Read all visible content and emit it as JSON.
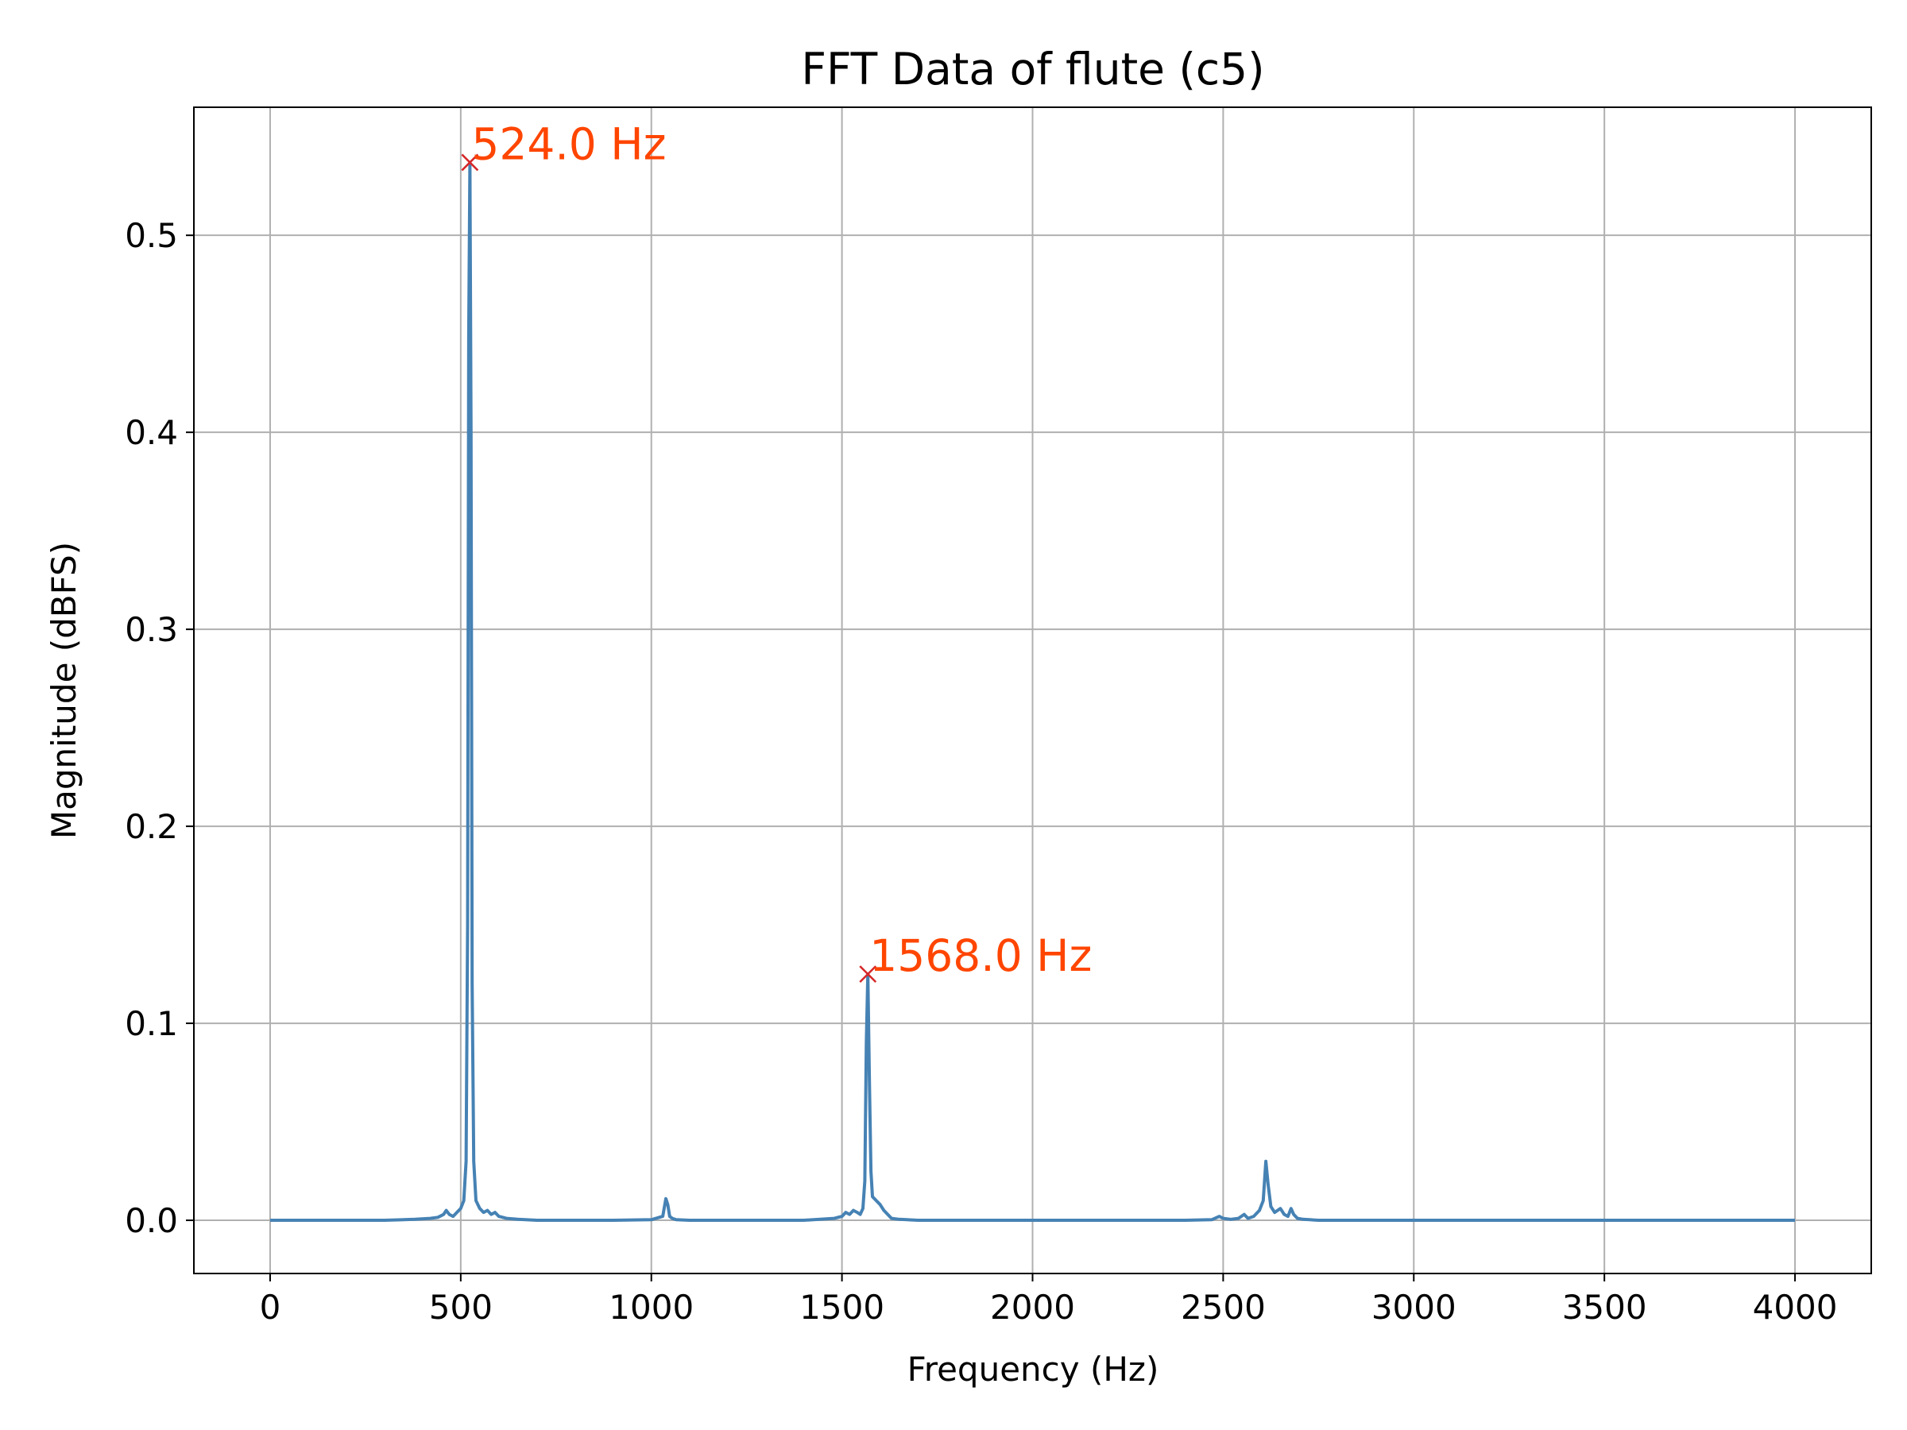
{
  "chart_data": {
    "type": "line",
    "title": "FFT Data of flute (c5)",
    "xlabel": "Frequency (Hz)",
    "ylabel": "Magnitude (dBFS)",
    "xlim": [
      -200,
      4200
    ],
    "ylim": [
      -0.027,
      0.565
    ],
    "xticks": [
      0,
      500,
      1000,
      1500,
      2000,
      2500,
      3000,
      3500,
      4000
    ],
    "yticks": [
      0.0,
      0.1,
      0.2,
      0.3,
      0.4,
      0.5
    ],
    "xtick_labels": [
      "0",
      "500",
      "1000",
      "1500",
      "2000",
      "2500",
      "3000",
      "3500",
      "4000"
    ],
    "ytick_labels": [
      "0.0",
      "0.1",
      "0.2",
      "0.3",
      "0.4",
      "0.5"
    ],
    "grid": true,
    "line_color": "#4682b4",
    "series": [
      {
        "x": [
          0,
          100,
          200,
          300,
          380,
          420,
          440,
          455,
          462,
          470,
          480,
          490,
          500,
          508,
          514,
          518,
          521,
          524,
          527,
          530,
          534,
          540,
          550,
          560,
          570,
          580,
          590,
          600,
          620,
          650,
          700,
          800,
          900,
          1000,
          1030,
          1038,
          1043,
          1048,
          1055,
          1065,
          1100,
          1200,
          1300,
          1400,
          1480,
          1500,
          1510,
          1520,
          1530,
          1540,
          1548,
          1555,
          1560,
          1564,
          1568,
          1572,
          1576,
          1580,
          1590,
          1600,
          1610,
          1620,
          1630,
          1650,
          1700,
          1800,
          2000,
          2200,
          2400,
          2470,
          2490,
          2500,
          2520,
          2540,
          2555,
          2565,
          2580,
          2595,
          2605,
          2612,
          2618,
          2625,
          2635,
          2650,
          2660,
          2670,
          2678,
          2685,
          2695,
          2710,
          2750,
          2800,
          3000,
          3200,
          3500,
          3800,
          4000
        ],
        "y": [
          0.0,
          0.0,
          0.0,
          0.0,
          0.0005,
          0.001,
          0.0015,
          0.003,
          0.005,
          0.003,
          0.002,
          0.004,
          0.006,
          0.01,
          0.03,
          0.15,
          0.45,
          0.537,
          0.4,
          0.12,
          0.03,
          0.01,
          0.006,
          0.004,
          0.005,
          0.003,
          0.004,
          0.002,
          0.001,
          0.0005,
          0.0,
          0.0,
          0.0,
          0.0003,
          0.002,
          0.011,
          0.008,
          0.002,
          0.001,
          0.0003,
          0.0,
          0.0,
          0.0,
          0.0,
          0.001,
          0.002,
          0.004,
          0.003,
          0.005,
          0.004,
          0.003,
          0.006,
          0.02,
          0.09,
          0.125,
          0.07,
          0.025,
          0.012,
          0.01,
          0.008,
          0.005,
          0.003,
          0.001,
          0.0005,
          0.0,
          0.0,
          0.0,
          0.0,
          0.0,
          0.0003,
          0.002,
          0.001,
          0.0005,
          0.001,
          0.003,
          0.001,
          0.002,
          0.005,
          0.01,
          0.03,
          0.018,
          0.007,
          0.004,
          0.006,
          0.003,
          0.002,
          0.006,
          0.003,
          0.001,
          0.0005,
          0.0,
          0.0,
          0.0,
          0.0,
          0.0,
          0.0,
          0.0
        ]
      }
    ],
    "peaks": [
      {
        "x": 524.0,
        "y": 0.537,
        "label": "524.0 Hz"
      },
      {
        "x": 1568.0,
        "y": 0.125,
        "label": "1568.0 Hz"
      }
    ],
    "peak_marker_color": "#d62728",
    "annotation_color": "#ff4500"
  }
}
